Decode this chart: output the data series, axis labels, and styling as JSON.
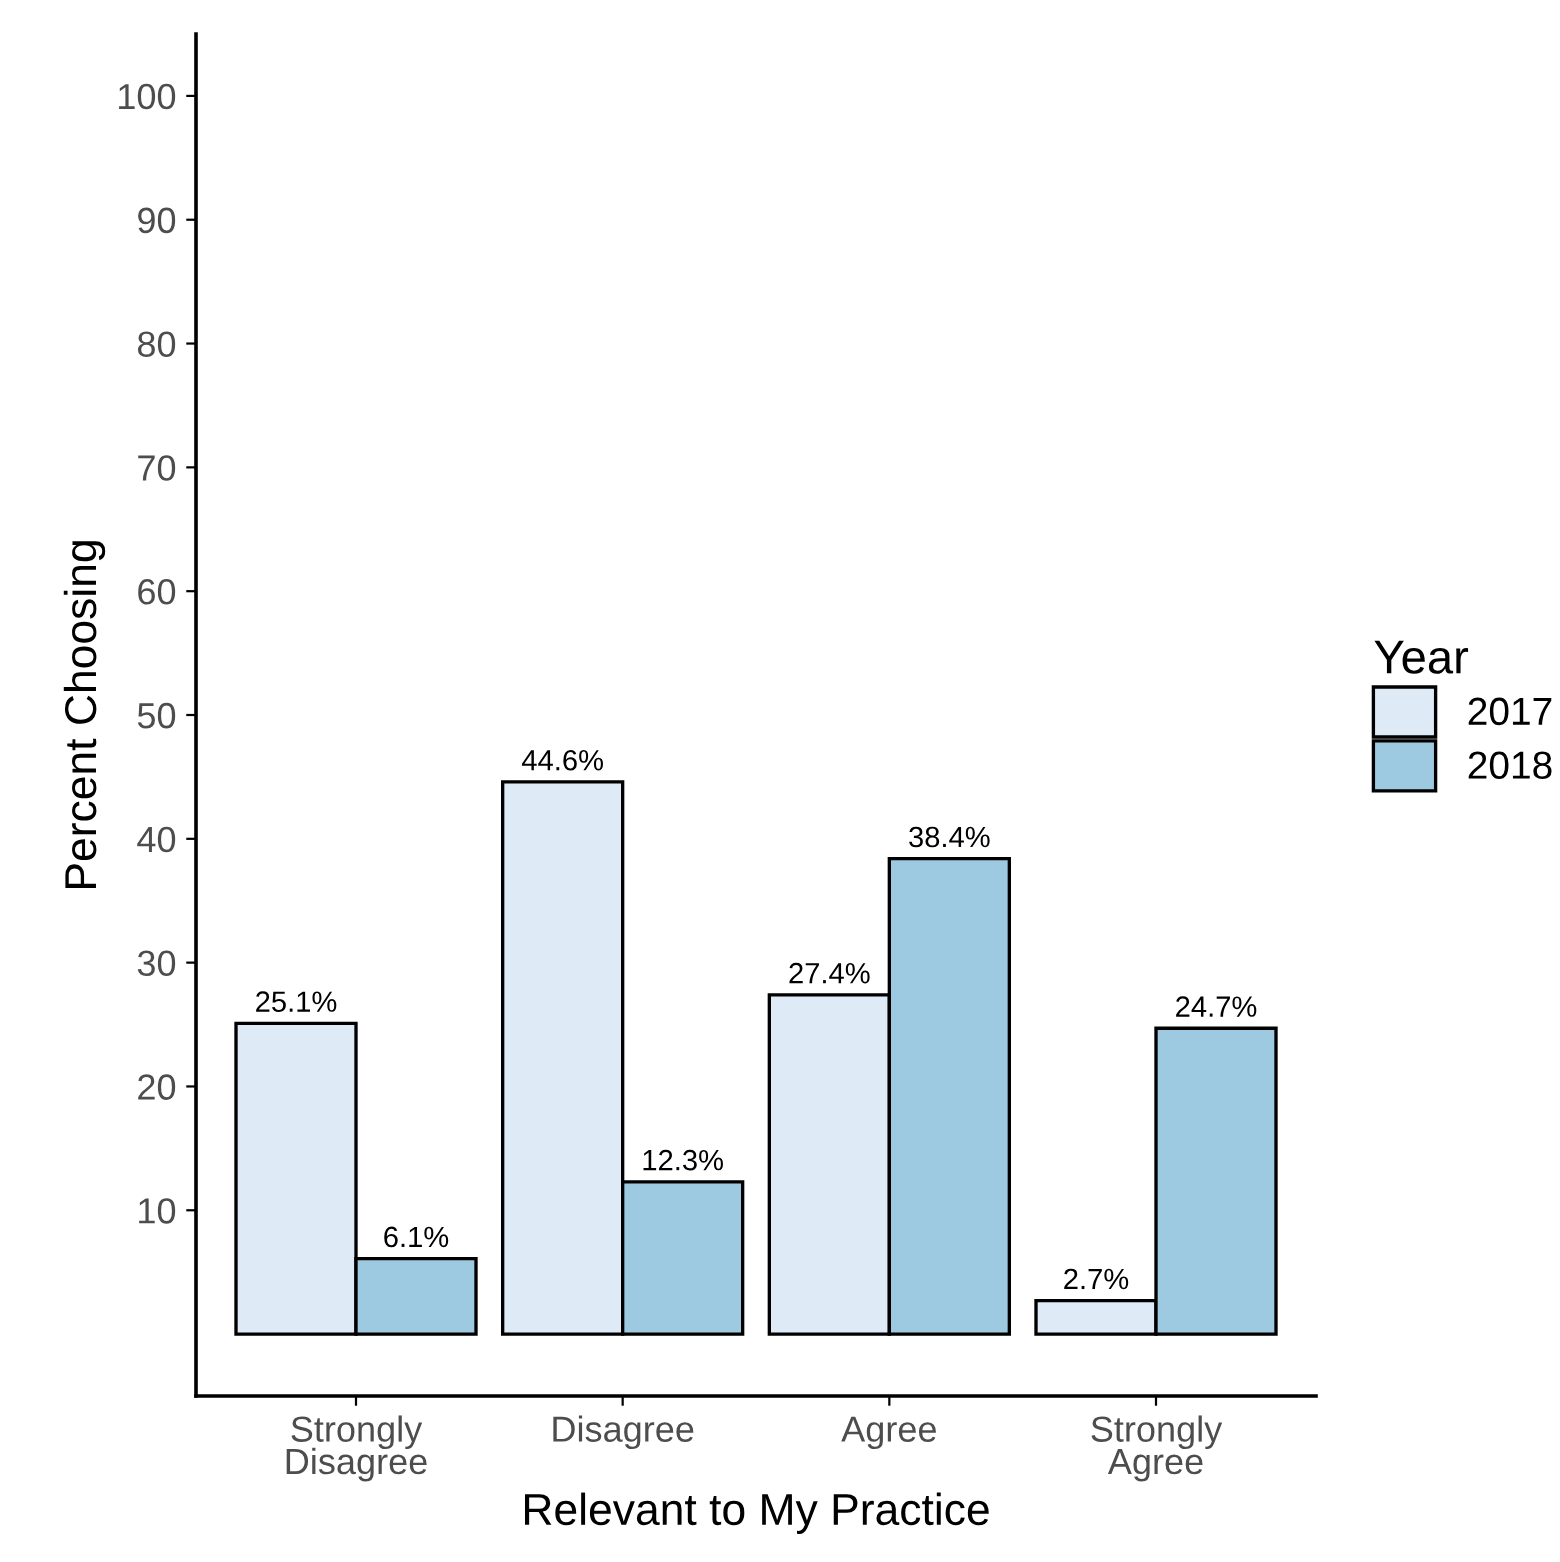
{
  "chart_data": {
    "type": "bar",
    "xlabel": "Relevant to My Practice",
    "ylabel": "Percent Choosing",
    "legend_title": "Year",
    "categories": [
      "Strongly\nDisagree",
      "Disagree",
      "Agree",
      "Strongly\nAgree"
    ],
    "series": [
      {
        "name": "2017",
        "color": "#deebf7",
        "values": [
          25.1,
          44.6,
          27.4,
          2.7
        ],
        "value_labels": [
          "25.1%",
          "44.6%",
          "27.4%",
          "2.7%"
        ]
      },
      {
        "name": "2018",
        "color": "#9ecae1",
        "values": [
          6.1,
          12.3,
          38.4,
          24.7
        ],
        "value_labels": [
          "6.1%",
          "12.3%",
          "38.4%",
          "24.7%"
        ]
      }
    ],
    "ylim": [
      -5,
      105
    ],
    "yticks": [
      10,
      20,
      30,
      40,
      50,
      60,
      70,
      80,
      90,
      100
    ],
    "grid": false,
    "legend": "right"
  }
}
